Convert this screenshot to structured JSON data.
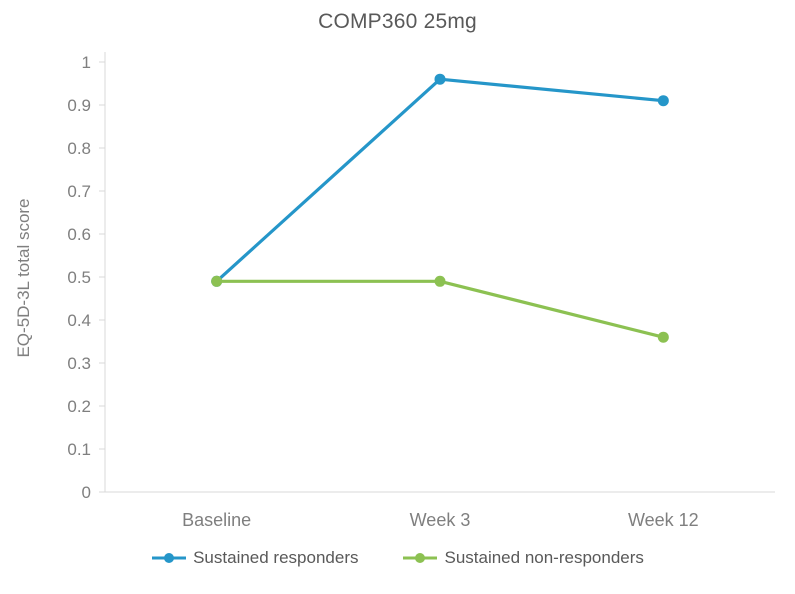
{
  "chart_data": {
    "type": "line",
    "title": "COMP360 25mg",
    "xlabel": "",
    "ylabel": "EQ-5D-3L total score",
    "categories": [
      "Baseline",
      "Week 3",
      "Week 12"
    ],
    "series": [
      {
        "name": "Sustained responders",
        "color": "#2596C9",
        "values": [
          0.49,
          0.96,
          0.91
        ]
      },
      {
        "name": "Sustained non-responders",
        "color": "#8CC152",
        "values": [
          0.49,
          0.49,
          0.36
        ]
      }
    ],
    "ylim": [
      0,
      1
    ],
    "ytick_labels": [
      "0",
      "0.1",
      "0.2",
      "0.3",
      "0.4",
      "0.5",
      "0.6",
      "0.7",
      "0.8",
      "0.9",
      "1"
    ],
    "grid": false,
    "legend_position": "bottom",
    "marker": "circle"
  },
  "colors": {
    "axis": "#d9d9d9",
    "tick_text": "#7f7f7f",
    "title_text": "#595959"
  }
}
